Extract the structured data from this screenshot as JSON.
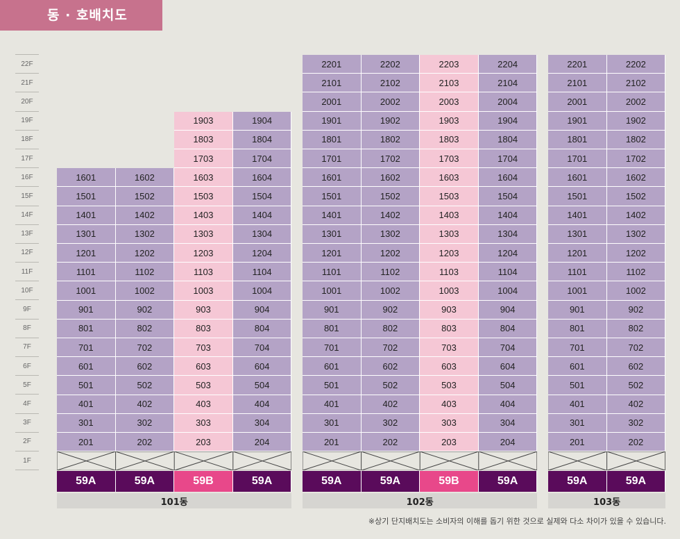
{
  "title": "동 · 호배치도",
  "floors": [
    "22F",
    "21F",
    "20F",
    "19F",
    "18F",
    "17F",
    "16F",
    "15F",
    "14F",
    "13F",
    "12F",
    "11F",
    "10F",
    "9F",
    "8F",
    "7F",
    "6F",
    "5F",
    "4F",
    "3F",
    "2F",
    "1F"
  ],
  "colors": {
    "type_a": "#b4a3c6",
    "type_b": "#f5c7d5",
    "label_a": "#5a0b5b",
    "label_b": "#e8488a"
  },
  "buildings": [
    {
      "name": "101동",
      "columns": [
        {
          "type": "59A",
          "style": "a",
          "top_floor": 16,
          "units": [
            "1601",
            "1501",
            "1401",
            "1301",
            "1201",
            "1101",
            "1001",
            "901",
            "801",
            "701",
            "601",
            "501",
            "401",
            "301",
            "201"
          ]
        },
        {
          "type": "59A",
          "style": "a",
          "top_floor": 16,
          "units": [
            "1602",
            "1502",
            "1402",
            "1302",
            "1202",
            "1102",
            "1002",
            "902",
            "802",
            "702",
            "602",
            "502",
            "402",
            "302",
            "202"
          ]
        },
        {
          "type": "59B",
          "style": "b",
          "top_floor": 19,
          "units": [
            "1903",
            "1803",
            "1703",
            "1603",
            "1503",
            "1403",
            "1303",
            "1203",
            "1103",
            "1003",
            "903",
            "803",
            "703",
            "603",
            "503",
            "403",
            "303",
            "203"
          ]
        },
        {
          "type": "59A",
          "style": "a",
          "top_floor": 19,
          "units": [
            "1904",
            "1804",
            "1704",
            "1604",
            "1504",
            "1404",
            "1304",
            "1204",
            "1104",
            "1004",
            "904",
            "804",
            "704",
            "604",
            "504",
            "404",
            "304",
            "204"
          ]
        }
      ]
    },
    {
      "name": "102동",
      "columns": [
        {
          "type": "59A",
          "style": "a",
          "top_floor": 22,
          "units": [
            "2201",
            "2101",
            "2001",
            "1901",
            "1801",
            "1701",
            "1601",
            "1501",
            "1401",
            "1301",
            "1201",
            "1101",
            "1001",
            "901",
            "801",
            "701",
            "601",
            "501",
            "401",
            "301",
            "201"
          ]
        },
        {
          "type": "59A",
          "style": "a",
          "top_floor": 22,
          "units": [
            "2202",
            "2102",
            "2002",
            "1902",
            "1802",
            "1702",
            "1602",
            "1502",
            "1402",
            "1302",
            "1202",
            "1102",
            "1002",
            "902",
            "802",
            "702",
            "602",
            "502",
            "402",
            "302",
            "202"
          ]
        },
        {
          "type": "59B",
          "style": "b",
          "top_floor": 22,
          "units": [
            "2203",
            "2103",
            "2003",
            "1903",
            "1803",
            "1703",
            "1603",
            "1503",
            "1403",
            "1303",
            "1203",
            "1103",
            "1003",
            "903",
            "803",
            "703",
            "603",
            "503",
            "403",
            "303",
            "203"
          ]
        },
        {
          "type": "59A",
          "style": "a",
          "top_floor": 22,
          "units": [
            "2204",
            "2104",
            "2004",
            "1904",
            "1804",
            "1704",
            "1604",
            "1504",
            "1404",
            "1304",
            "1204",
            "1104",
            "1004",
            "904",
            "804",
            "704",
            "604",
            "504",
            "404",
            "304",
            "204"
          ]
        }
      ]
    },
    {
      "name": "103동",
      "columns": [
        {
          "type": "59A",
          "style": "a",
          "top_floor": 22,
          "units": [
            "2201",
            "2101",
            "2001",
            "1901",
            "1801",
            "1701",
            "1601",
            "1501",
            "1401",
            "1301",
            "1201",
            "1101",
            "1001",
            "901",
            "801",
            "701",
            "601",
            "501",
            "401",
            "301",
            "201"
          ]
        },
        {
          "type": "59A",
          "style": "a",
          "top_floor": 22,
          "units": [
            "2202",
            "2102",
            "2002",
            "1902",
            "1802",
            "1702",
            "1602",
            "1502",
            "1402",
            "1302",
            "1202",
            "1102",
            "1002",
            "902",
            "802",
            "702",
            "602",
            "502",
            "402",
            "302",
            "202"
          ]
        }
      ]
    }
  ],
  "note": "※상기 단지배치도는 소비자의 이해를 돕기 위한 것으로 실제와 다소 차이가 있을 수 있습니다."
}
